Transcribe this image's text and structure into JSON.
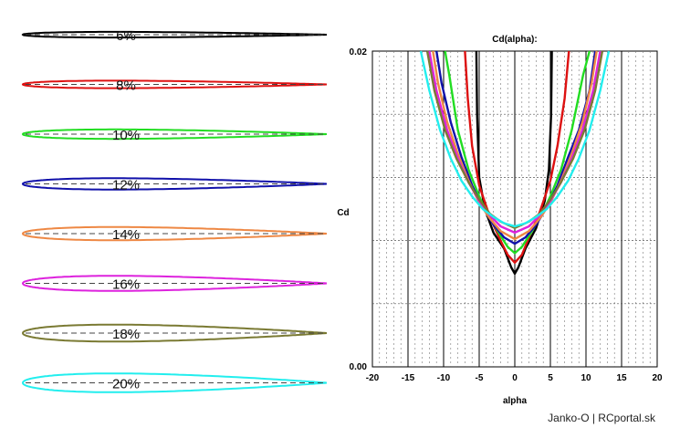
{
  "left_panel": {
    "airfoils": [
      {
        "label": "6%",
        "thickness": 6,
        "color": "#000000"
      },
      {
        "label": "8%",
        "thickness": 8,
        "color": "#dd1111"
      },
      {
        "label": "10%",
        "thickness": 10,
        "color": "#22dd22"
      },
      {
        "label": "12%",
        "thickness": 12,
        "color": "#1111aa"
      },
      {
        "label": "14%",
        "thickness": 14,
        "color": "#ee8844"
      },
      {
        "label": "16%",
        "thickness": 16,
        "color": "#dd22dd"
      },
      {
        "label": "18%",
        "thickness": 18,
        "color": "#7a7a33"
      },
      {
        "label": "20%",
        "thickness": 20,
        "color": "#22eeee"
      }
    ]
  },
  "chart_data": {
    "type": "line",
    "title": "Cd(alpha):",
    "xlabel": "alpha",
    "ylabel": "Cd",
    "xlim": [
      -20,
      20
    ],
    "ylim": [
      0.0,
      0.02
    ],
    "x_ticks": [
      -20,
      -15,
      -10,
      -5,
      0,
      5,
      10,
      15,
      20
    ],
    "y_tick_labels": [
      "0.02",
      "0.00"
    ],
    "grid": true,
    "series": [
      {
        "thickness": 6,
        "color": "#000000",
        "points": [
          [
            -5.4,
            0.02
          ],
          [
            -5.3,
            0.016
          ],
          [
            -5.0,
            0.012
          ],
          [
            -4.2,
            0.01
          ],
          [
            -3,
            0.0085
          ],
          [
            -1.5,
            0.0075
          ],
          [
            -0.5,
            0.0063
          ],
          [
            0,
            0.0059
          ],
          [
            0.5,
            0.0063
          ],
          [
            1.5,
            0.0075
          ],
          [
            3,
            0.0088
          ],
          [
            4.2,
            0.0105
          ],
          [
            4.8,
            0.0125
          ],
          [
            5.1,
            0.016
          ],
          [
            5.2,
            0.02
          ]
        ]
      },
      {
        "thickness": 8,
        "color": "#dd1111",
        "points": [
          [
            -7.0,
            0.02
          ],
          [
            -6.6,
            0.017
          ],
          [
            -6,
            0.014
          ],
          [
            -5,
            0.0115
          ],
          [
            -3.5,
            0.0095
          ],
          [
            -2,
            0.008
          ],
          [
            -1,
            0.0071
          ],
          [
            0,
            0.0066
          ],
          [
            1,
            0.0071
          ],
          [
            2,
            0.0082
          ],
          [
            3.5,
            0.0098
          ],
          [
            5,
            0.0118
          ],
          [
            6,
            0.014
          ],
          [
            7,
            0.017
          ],
          [
            7.6,
            0.02
          ]
        ]
      },
      {
        "thickness": 10,
        "color": "#22dd22",
        "points": [
          [
            -9.8,
            0.02
          ],
          [
            -9.2,
            0.0185
          ],
          [
            -8,
            0.015
          ],
          [
            -6.5,
            0.0125
          ],
          [
            -5,
            0.0108
          ],
          [
            -3.5,
            0.0094
          ],
          [
            -2,
            0.0083
          ],
          [
            -1,
            0.0076
          ],
          [
            0,
            0.0072
          ],
          [
            1,
            0.0076
          ],
          [
            2,
            0.0083
          ],
          [
            3.5,
            0.0094
          ],
          [
            5,
            0.0108
          ],
          [
            6.5,
            0.0125
          ],
          [
            8,
            0.015
          ],
          [
            9.6,
            0.0185
          ],
          [
            10.5,
            0.02
          ]
        ]
      },
      {
        "thickness": 12,
        "color": "#1111aa",
        "points": [
          [
            -11.0,
            0.02
          ],
          [
            -10.3,
            0.018
          ],
          [
            -9,
            0.0155
          ],
          [
            -7.5,
            0.0133
          ],
          [
            -6,
            0.0115
          ],
          [
            -4.5,
            0.0101
          ],
          [
            -3,
            0.009
          ],
          [
            -1.5,
            0.0082
          ],
          [
            0,
            0.0078
          ],
          [
            1.5,
            0.0082
          ],
          [
            3,
            0.009
          ],
          [
            4.5,
            0.0101
          ],
          [
            6,
            0.0115
          ],
          [
            7.5,
            0.0133
          ],
          [
            9,
            0.015
          ],
          [
            10.5,
            0.0175
          ],
          [
            11.3,
            0.02
          ]
        ]
      },
      {
        "thickness": 14,
        "color": "#ee8844",
        "points": [
          [
            -11.5,
            0.02
          ],
          [
            -10.8,
            0.018
          ],
          [
            -9.5,
            0.0155
          ],
          [
            -8,
            0.0135
          ],
          [
            -6.5,
            0.0118
          ],
          [
            -5,
            0.0104
          ],
          [
            -3.5,
            0.0094
          ],
          [
            -2,
            0.0086
          ],
          [
            0,
            0.0081
          ],
          [
            2,
            0.0086
          ],
          [
            3.5,
            0.0094
          ],
          [
            5,
            0.0104
          ],
          [
            6.5,
            0.0118
          ],
          [
            8,
            0.0135
          ],
          [
            9.5,
            0.0155
          ],
          [
            10.8,
            0.018
          ],
          [
            11.5,
            0.02
          ]
        ]
      },
      {
        "thickness": 16,
        "color": "#dd22dd",
        "points": [
          [
            -12.0,
            0.02
          ],
          [
            -11,
            0.0175
          ],
          [
            -9.5,
            0.015
          ],
          [
            -8,
            0.0132
          ],
          [
            -6.5,
            0.0117
          ],
          [
            -5,
            0.0105
          ],
          [
            -3.5,
            0.0096
          ],
          [
            -2,
            0.0089
          ],
          [
            0,
            0.0085
          ],
          [
            2,
            0.0089
          ],
          [
            3.5,
            0.0096
          ],
          [
            5,
            0.0105
          ],
          [
            6.5,
            0.0117
          ],
          [
            8,
            0.0132
          ],
          [
            9.5,
            0.015
          ],
          [
            11,
            0.0175
          ],
          [
            12,
            0.02
          ]
        ]
      },
      {
        "thickness": 18,
        "color": "#7a7a33",
        "points": [
          [
            -12.3,
            0.02
          ],
          [
            -11.3,
            0.0175
          ],
          [
            -9.8,
            0.015
          ],
          [
            -8.2,
            0.0132
          ],
          [
            -6.5,
            0.0117
          ],
          [
            -5,
            0.0106
          ],
          [
            -3.5,
            0.0097
          ],
          [
            -2,
            0.0092
          ],
          [
            0,
            0.0088
          ],
          [
            2,
            0.0092
          ],
          [
            3.5,
            0.0097
          ],
          [
            5,
            0.0106
          ],
          [
            6.5,
            0.0117
          ],
          [
            8.2,
            0.0132
          ],
          [
            9.8,
            0.015
          ],
          [
            11.3,
            0.0175
          ],
          [
            12.3,
            0.02
          ]
        ]
      },
      {
        "thickness": 20,
        "color": "#22eeee",
        "points": [
          [
            -13.2,
            0.02
          ],
          [
            -12,
            0.0175
          ],
          [
            -10.5,
            0.015
          ],
          [
            -9,
            0.0132
          ],
          [
            -7.5,
            0.0118
          ],
          [
            -6,
            0.0108
          ],
          [
            -4.5,
            0.01
          ],
          [
            -3,
            0.0095
          ],
          [
            -1.5,
            0.0091
          ],
          [
            0,
            0.0089
          ],
          [
            1.5,
            0.0091
          ],
          [
            3,
            0.0095
          ],
          [
            4.5,
            0.01
          ],
          [
            6,
            0.0108
          ],
          [
            7.5,
            0.0118
          ],
          [
            9,
            0.0132
          ],
          [
            10.5,
            0.015
          ],
          [
            12,
            0.0175
          ],
          [
            13.2,
            0.02
          ]
        ]
      }
    ]
  },
  "credit": "Janko-O | RCportal.sk"
}
